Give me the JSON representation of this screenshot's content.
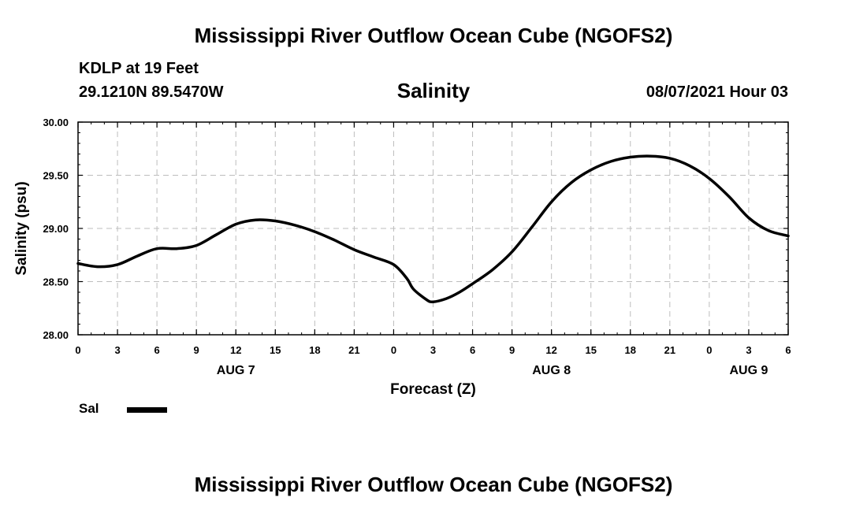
{
  "header": {
    "title": "Mississippi River Outflow Ocean Cube (NGOFS2)",
    "station": "KDLP at 19 Feet",
    "coordinates": "29.1210N  89.5470W",
    "subtitle": "Salinity",
    "datetime": "08/07/2021 Hour 03"
  },
  "footer": {
    "title": "Mississippi River Outflow Ocean Cube (NGOFS2)"
  },
  "legend": {
    "label": "Sal",
    "color": "#000000"
  },
  "chart_data": {
    "type": "line",
    "title": "Salinity",
    "xlabel": "Forecast (Z)",
    "ylabel": "Salinity (psu)",
    "ylim": [
      28.0,
      30.0
    ],
    "xlim": [
      0,
      54
    ],
    "grid": true,
    "yticks": [
      "28.00",
      "28.50",
      "29.00",
      "29.50",
      "30.00"
    ],
    "xtick_labels": [
      "0",
      "3",
      "6",
      "9",
      "12",
      "15",
      "18",
      "21",
      "0",
      "3",
      "6",
      "9",
      "12",
      "15",
      "18",
      "21",
      "0",
      "3",
      "6"
    ],
    "date_labels": [
      {
        "x": 12,
        "label": "AUG 7"
      },
      {
        "x": 36,
        "label": "AUG 8"
      },
      {
        "x": 51,
        "label": "AUG 9"
      }
    ],
    "series": [
      {
        "name": "Sal",
        "x": [
          0,
          1.5,
          3,
          4.5,
          6,
          7.5,
          9,
          10.5,
          12,
          13.5,
          15,
          16.5,
          18,
          19.5,
          21,
          22.5,
          24,
          25,
          25.5,
          26.5,
          27,
          28,
          29,
          30,
          31.5,
          33,
          34.5,
          36,
          37.5,
          39,
          40.5,
          42,
          43.5,
          45,
          46.5,
          48,
          49.5,
          51,
          52.5,
          54
        ],
        "values": [
          28.67,
          28.64,
          28.66,
          28.74,
          28.81,
          28.81,
          28.84,
          28.94,
          29.04,
          29.08,
          29.07,
          29.03,
          28.97,
          28.89,
          28.8,
          28.73,
          28.66,
          28.53,
          28.43,
          28.33,
          28.31,
          28.34,
          28.4,
          28.48,
          28.61,
          28.78,
          29.01,
          29.25,
          29.43,
          29.55,
          29.63,
          29.67,
          29.68,
          29.66,
          29.59,
          29.47,
          29.3,
          29.1,
          28.98,
          28.93
        ]
      }
    ]
  }
}
